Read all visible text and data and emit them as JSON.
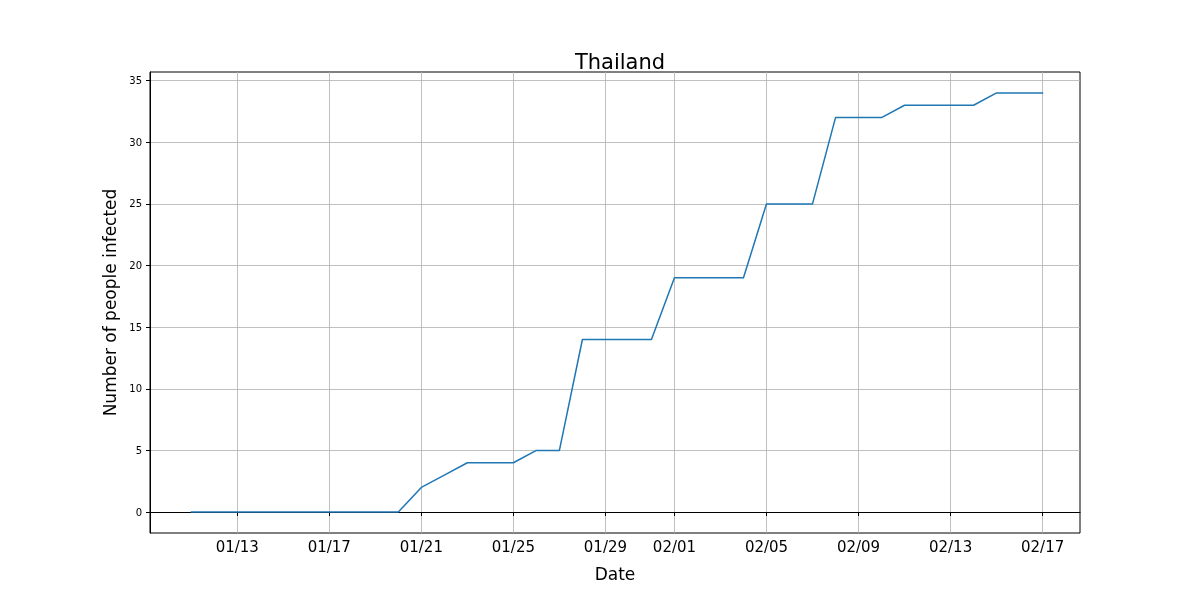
{
  "chart_data": {
    "type": "line",
    "title": "Thailand",
    "xlabel": "Date",
    "ylabel": "Number of people infected",
    "x": [
      "--01-11",
      "--01-12",
      "--01-13",
      "--01-14",
      "--01-15",
      "--01-16",
      "--01-17",
      "--01-18",
      "--01-19",
      "--01-20",
      "--01-21",
      "--01-22",
      "--01-23",
      "--01-24",
      "--01-25",
      "--01-26",
      "--01-27",
      "--01-28",
      "--01-29",
      "--01-30",
      "--01-31",
      "--02-01",
      "--02-02",
      "--02-03",
      "--02-04",
      "--02-05",
      "--02-06",
      "--02-07",
      "--02-08",
      "--02-09",
      "--02-10",
      "--02-11",
      "--02-12",
      "--02-13",
      "--02-14",
      "--02-15",
      "--02-16",
      "--02-17"
    ],
    "series": [
      {
        "color": "#1f77b4",
        "values": [
          0,
          0,
          0,
          0,
          0,
          0,
          0,
          0,
          0,
          0,
          2,
          3,
          4,
          4,
          4,
          5,
          5,
          14,
          14,
          14,
          14,
          19,
          19,
          19,
          19,
          25,
          25,
          25,
          32,
          32,
          32,
          33,
          33,
          33,
          33,
          34,
          34,
          34
        ]
      }
    ],
    "xlim": [
      "--01-09T05:00",
      "--02-18T15:00"
    ],
    "xticks": [
      {
        "value": "--01-13",
        "label": "01/13"
      },
      {
        "value": "--01-17",
        "label": "01/17"
      },
      {
        "value": "--01-21",
        "label": "01/21"
      },
      {
        "value": "--01-25",
        "label": "01/25"
      },
      {
        "value": "--01-29",
        "label": "01/29"
      },
      {
        "value": "--02-01",
        "label": "02/01"
      },
      {
        "value": "--02-05",
        "label": "02/05"
      },
      {
        "value": "--02-09",
        "label": "02/09"
      },
      {
        "value": "--02-13",
        "label": "02/13"
      },
      {
        "value": "--02-17",
        "label": "02/17"
      }
    ],
    "ylim": [
      -1.7,
      35.7
    ],
    "yticks": [
      0,
      5,
      10,
      15,
      20,
      25,
      30,
      35
    ],
    "grid": true,
    "marker": "none",
    "line_style": "solid"
  }
}
